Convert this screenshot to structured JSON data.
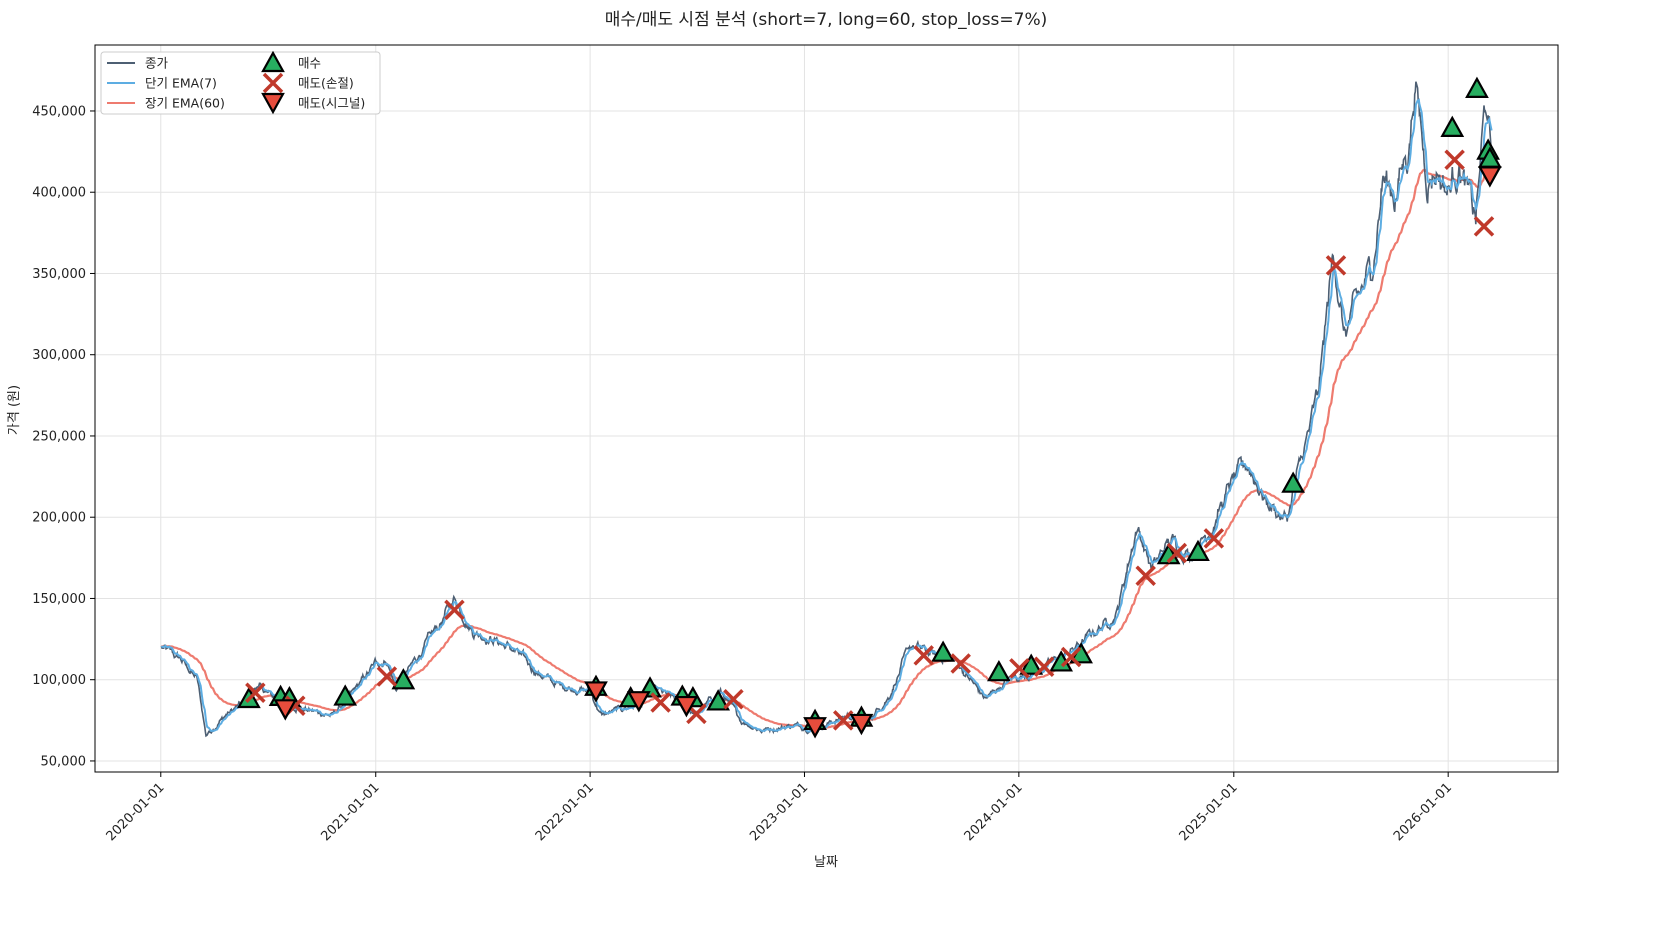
{
  "chart_data": {
    "type": "line",
    "title": "매수/매도 시점 분석 (short=7, long=60, stop_loss=7%)",
    "xlabel": "날짜",
    "ylabel": "가격 (원)",
    "xlim": [
      "2019-09-11",
      "2026-07-07"
    ],
    "ylim": [
      43200,
      490600
    ],
    "grid": true,
    "legend_placement": "top-left",
    "x_ticks": [
      "2020-01-01",
      "2021-01-01",
      "2022-01-01",
      "2023-01-01",
      "2024-01-01",
      "2025-01-01",
      "2026-01-01"
    ],
    "y_ticks": [
      50000,
      100000,
      150000,
      200000,
      250000,
      300000,
      350000,
      400000,
      450000
    ],
    "y_tick_labels": [
      "50,000",
      "100,000",
      "150,000",
      "200,000",
      "250,000",
      "300,000",
      "350,000",
      "400,000",
      "450,000"
    ],
    "legend": [
      {
        "label": "종가",
        "kind": "line",
        "color": "#4d5f73"
      },
      {
        "label": "단기 EMA(7)",
        "kind": "line",
        "color": "#5dade2"
      },
      {
        "label": "장기 EMA(60)",
        "kind": "line",
        "color": "#ee7b6f"
      },
      {
        "label": "매수",
        "kind": "buy",
        "color": "#27ae60"
      },
      {
        "label": "매도(손절)",
        "kind": "stop",
        "color": "#c0392b"
      },
      {
        "label": "매도(시그널)",
        "kind": "signal",
        "color": "#e74c3c"
      }
    ],
    "ema_short": 7,
    "ema_long": 60,
    "close_anchors": [
      [
        "2020-01-02",
        120000
      ],
      [
        "2020-02-05",
        112000
      ],
      [
        "2020-03-03",
        100000
      ],
      [
        "2020-03-18",
        66000
      ],
      [
        "2020-04-20",
        78000
      ],
      [
        "2020-05-25",
        87000
      ],
      [
        "2020-06-12",
        96000
      ],
      [
        "2020-07-20",
        87000
      ],
      [
        "2020-09-10",
        81000
      ],
      [
        "2020-10-20",
        78000
      ],
      [
        "2020-11-15",
        88000
      ],
      [
        "2021-01-01",
        110000
      ],
      [
        "2021-01-20",
        112000
      ],
      [
        "2021-02-05",
        94000
      ],
      [
        "2021-03-15",
        115000
      ],
      [
        "2021-04-20",
        134000
      ],
      [
        "2021-05-15",
        150000
      ],
      [
        "2021-06-15",
        130000
      ],
      [
        "2021-07-20",
        125000
      ],
      [
        "2021-08-25",
        118000
      ],
      [
        "2021-10-01",
        105000
      ],
      [
        "2021-11-05",
        97000
      ],
      [
        "2022-01-01",
        93000
      ],
      [
        "2022-01-20",
        78000
      ],
      [
        "2022-03-15",
        84000
      ],
      [
        "2022-04-20",
        94000
      ],
      [
        "2022-05-25",
        88000
      ],
      [
        "2022-07-01",
        78000
      ],
      [
        "2022-08-10",
        93000
      ],
      [
        "2022-09-15",
        75000
      ],
      [
        "2022-10-20",
        69000
      ],
      [
        "2022-12-15",
        72000
      ],
      [
        "2023-01-20",
        70000
      ],
      [
        "2023-03-15",
        78000
      ],
      [
        "2023-04-20",
        75000
      ],
      [
        "2023-05-25",
        90000
      ],
      [
        "2023-07-01",
        121000
      ],
      [
        "2023-08-10",
        115000
      ],
      [
        "2023-09-15",
        112000
      ],
      [
        "2023-11-05",
        88000
      ],
      [
        "2023-12-15",
        100000
      ],
      [
        "2024-02-05",
        106000
      ],
      [
        "2024-04-01",
        118000
      ],
      [
        "2024-05-10",
        130000
      ],
      [
        "2024-06-15",
        140000
      ],
      [
        "2024-07-20",
        195000
      ],
      [
        "2024-08-15",
        168000
      ],
      [
        "2024-09-15",
        186000
      ],
      [
        "2024-10-20",
        177000
      ],
      [
        "2024-11-25",
        195000
      ],
      [
        "2025-01-01",
        223000
      ],
      [
        "2025-01-25",
        232000
      ],
      [
        "2025-02-25",
        210000
      ],
      [
        "2025-04-01",
        198000
      ],
      [
        "2025-04-18",
        223000
      ],
      [
        "2025-05-25",
        275000
      ],
      [
        "2025-06-20",
        364000
      ],
      [
        "2025-07-08",
        312000
      ],
      [
        "2025-08-08",
        340000
      ],
      [
        "2025-08-25",
        355000
      ],
      [
        "2025-09-12",
        410000
      ],
      [
        "2025-10-01",
        398000
      ],
      [
        "2025-10-25",
        426000
      ],
      [
        "2025-11-06",
        469000
      ],
      [
        "2025-11-25",
        410000
      ],
      [
        "2025-12-15",
        414000
      ],
      [
        "2026-01-01",
        401000
      ],
      [
        "2026-01-20",
        420000
      ],
      [
        "2026-02-05",
        395000
      ],
      [
        "2026-02-17",
        383000
      ],
      [
        "2026-03-06",
        457000
      ],
      [
        "2026-03-16",
        417000
      ]
    ],
    "buys": [
      [
        "2020-05-30",
        87500
      ],
      [
        "2020-07-23",
        88800
      ],
      [
        "2020-08-07",
        88000
      ],
      [
        "2020-11-10",
        89000
      ],
      [
        "2021-02-17",
        99000
      ],
      [
        "2022-01-11",
        95000
      ],
      [
        "2022-03-11",
        88000
      ],
      [
        "2022-04-13",
        94000
      ],
      [
        "2022-06-07",
        89000
      ],
      [
        "2022-06-25",
        88000
      ],
      [
        "2022-08-07",
        86000
      ],
      [
        "2023-01-19",
        74000
      ],
      [
        "2023-04-08",
        76000
      ],
      [
        "2023-08-25",
        116000
      ],
      [
        "2023-11-28",
        104000
      ],
      [
        "2024-01-22",
        108000
      ],
      [
        "2024-03-13",
        110000
      ],
      [
        "2024-04-16",
        115000
      ],
      [
        "2024-09-12",
        176000
      ],
      [
        "2024-11-01",
        178000
      ],
      [
        "2025-04-12",
        220000
      ],
      [
        "2026-01-08",
        439000
      ],
      [
        "2026-02-19",
        463000
      ],
      [
        "2026-03-10",
        425000
      ],
      [
        "2026-03-13",
        420000
      ]
    ],
    "stop_loss_sells": [
      [
        "2020-06-10",
        92000
      ],
      [
        "2020-08-17",
        84000
      ],
      [
        "2021-01-20",
        102000
      ],
      [
        "2021-05-15",
        143000
      ],
      [
        "2022-05-01",
        86000
      ],
      [
        "2022-07-01",
        79000
      ],
      [
        "2022-09-02",
        88000
      ],
      [
        "2023-03-08",
        75000
      ],
      [
        "2023-07-23",
        115000
      ],
      [
        "2023-09-24",
        110000
      ],
      [
        "2024-01-02",
        107000
      ],
      [
        "2024-02-13",
        108000
      ],
      [
        "2024-03-30",
        114000
      ],
      [
        "2024-08-04",
        164000
      ],
      [
        "2024-09-26",
        178000
      ],
      [
        "2024-11-28",
        187000
      ],
      [
        "2025-06-24",
        355000
      ],
      [
        "2026-01-12",
        420000
      ],
      [
        "2026-03-03",
        379000
      ]
    ],
    "signal_sells": [
      [
        "2020-07-31",
        83000
      ],
      [
        "2022-01-11",
        94000
      ],
      [
        "2022-03-25",
        88000
      ],
      [
        "2022-06-14",
        85000
      ],
      [
        "2023-01-19",
        72000
      ],
      [
        "2023-04-08",
        74000
      ],
      [
        "2026-03-13",
        411000
      ]
    ]
  }
}
